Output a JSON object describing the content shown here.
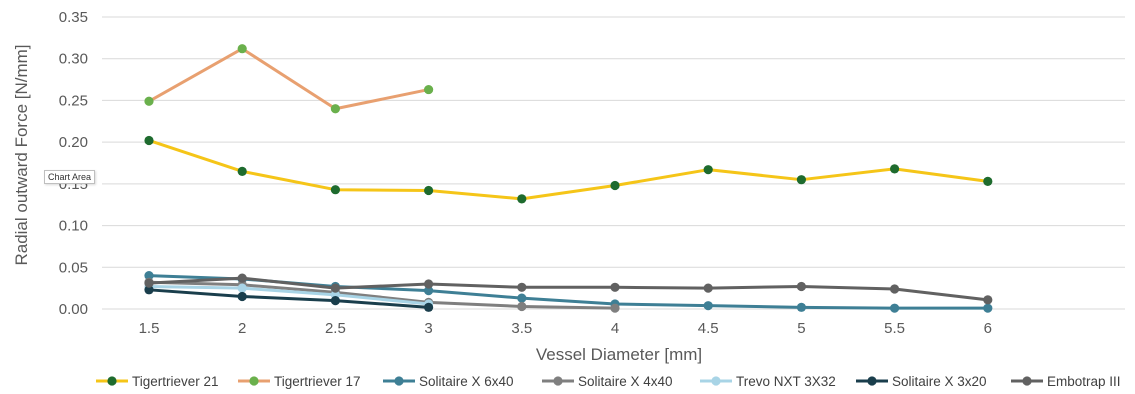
{
  "tooltip": "Chart Area",
  "chart_data": {
    "type": "line",
    "title": "",
    "xlabel": "Vessel Diameter [mm]",
    "ylabel": "Radial outward Force [N/mm]",
    "categories": [
      "1.5",
      "2",
      "2.5",
      "3",
      "3.5",
      "4",
      "4.5",
      "5",
      "5.5",
      "6"
    ],
    "ylim": [
      0,
      0.35
    ],
    "yticks": [
      "0.00",
      "0.05",
      "0.10",
      "0.15",
      "0.20",
      "0.25",
      "0.30",
      "0.35"
    ],
    "grid": true,
    "legend_position": "bottom",
    "series": [
      {
        "name": "Tigertriever 21",
        "color": "#f5c518",
        "marker": "#1e6b2e",
        "values": [
          0.202,
          0.165,
          0.143,
          0.142,
          0.132,
          0.148,
          0.167,
          0.155,
          0.168,
          0.153
        ]
      },
      {
        "name": "Tigertriever 17",
        "color": "#e8a070",
        "marker": "#6ab04c",
        "values": [
          0.249,
          0.312,
          0.24,
          0.263,
          null,
          null,
          null,
          null,
          null,
          null
        ]
      },
      {
        "name": "Solitaire X 6x40",
        "color": "#3e7f95",
        "marker": "#3e7f95",
        "values": [
          0.04,
          0.036,
          0.027,
          0.022,
          0.013,
          0.006,
          0.004,
          0.002,
          0.001,
          0.001
        ]
      },
      {
        "name": "Solitaire X 4x40",
        "color": "#7f7f7f",
        "marker": "#7f7f7f",
        "values": [
          0.032,
          0.029,
          0.02,
          0.008,
          0.003,
          0.001,
          null,
          null,
          null,
          null
        ]
      },
      {
        "name": "Trevo NXT 3X32",
        "color": "#a8d4e6",
        "marker": "#a8d4e6",
        "values": [
          0.027,
          0.025,
          0.017,
          0.006,
          null,
          null,
          null,
          null,
          null,
          null
        ]
      },
      {
        "name": "Solitaire X 3x20",
        "color": "#1a3e4c",
        "marker": "#1a3e4c",
        "values": [
          0.023,
          0.015,
          0.01,
          0.002,
          null,
          null,
          null,
          null,
          null,
          null
        ]
      },
      {
        "name": "Embotrap III",
        "color": "#616161",
        "marker": "#616161",
        "values": [
          0.031,
          0.037,
          0.025,
          0.03,
          0.026,
          0.026,
          0.025,
          0.027,
          0.024,
          0.011
        ]
      }
    ]
  }
}
